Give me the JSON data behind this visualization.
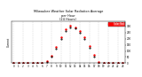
{
  "title": "Milwaukee Weather Solar Radiation Average\nper Hour\n(24 Hours)",
  "ylabel": "Current",
  "hours": [
    0,
    1,
    2,
    3,
    4,
    5,
    6,
    7,
    8,
    9,
    10,
    11,
    12,
    13,
    14,
    15,
    16,
    17,
    18,
    19,
    20,
    21,
    22,
    23
  ],
  "solar_red": [
    0,
    0,
    0,
    0,
    0,
    0,
    2,
    15,
    60,
    130,
    210,
    275,
    310,
    295,
    260,
    210,
    140,
    65,
    10,
    0,
    0,
    0,
    0,
    0
  ],
  "solar_black": [
    0,
    0,
    0,
    0,
    0,
    0,
    0,
    8,
    50,
    120,
    195,
    260,
    295,
    285,
    250,
    195,
    128,
    55,
    5,
    0,
    0,
    0,
    0,
    0
  ],
  "ylim": [
    0,
    340
  ],
  "ytick_vals": [
    0,
    50,
    100,
    150,
    200,
    250,
    300
  ],
  "ytick_labels": [
    "0",
    "50",
    "100",
    "150",
    "200",
    "250",
    "300"
  ],
  "bg_color": "#ffffff",
  "plot_bg": "#ffffff",
  "grid_color": "#bbbbbb",
  "red_color": "#ff0000",
  "black_color": "#000000",
  "legend_label": "Solar Rad"
}
